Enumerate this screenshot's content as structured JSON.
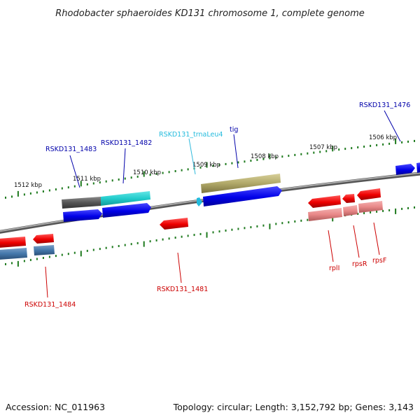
{
  "title": "Rhodobacter sphaeroides KD131 chromosome 1, complete genome",
  "footer": {
    "accession": "Accession: NC_011963",
    "summary": "Topology: circular; Length: 3,152,792 bp; Genes: 3,143"
  },
  "scale_labels": [
    {
      "label": "1512 kbp"
    },
    {
      "label": "1511 kbp"
    },
    {
      "label": "1510 kbp"
    },
    {
      "label": "1509 kbp"
    },
    {
      "label": "1508 kbp"
    },
    {
      "label": "1507 kbp"
    },
    {
      "label": "1506 kbp"
    }
  ],
  "gene_labels": [
    {
      "text": "RSKD131_1483",
      "color": "#0000aa"
    },
    {
      "text": "RSKD131_1482",
      "color": "#0000aa"
    },
    {
      "text": "RSKD131_trnaLeu4",
      "color": "#22bbdd"
    },
    {
      "text": "tig",
      "color": "#0000aa"
    },
    {
      "text": "RSKD131_1476",
      "color": "#0000aa"
    },
    {
      "text": "RSKD131_1484",
      "color": "#cc0000"
    },
    {
      "text": "RSKD131_1481",
      "color": "#cc0000"
    },
    {
      "text": "rplI",
      "color": "#cc0000"
    },
    {
      "text": "rpsR",
      "color": "#cc0000"
    },
    {
      "text": "rpsF",
      "color": "#cc0000"
    }
  ],
  "colors": {
    "backbone": "#808080",
    "tick": "#1e7a1e",
    "forward_gene": "#0000ee",
    "reverse_gene": "#ee0000",
    "forward_feature": "#555555",
    "trna_feature": "#22cccc",
    "tig_feature": "#b0a868",
    "reverse_feature_blue": "#4477aa",
    "reverse_feature_pink": "#e88888",
    "connector_blue": "#0000aa",
    "connector_cyan": "#33bbdd",
    "connector_red": "#cc0000"
  }
}
